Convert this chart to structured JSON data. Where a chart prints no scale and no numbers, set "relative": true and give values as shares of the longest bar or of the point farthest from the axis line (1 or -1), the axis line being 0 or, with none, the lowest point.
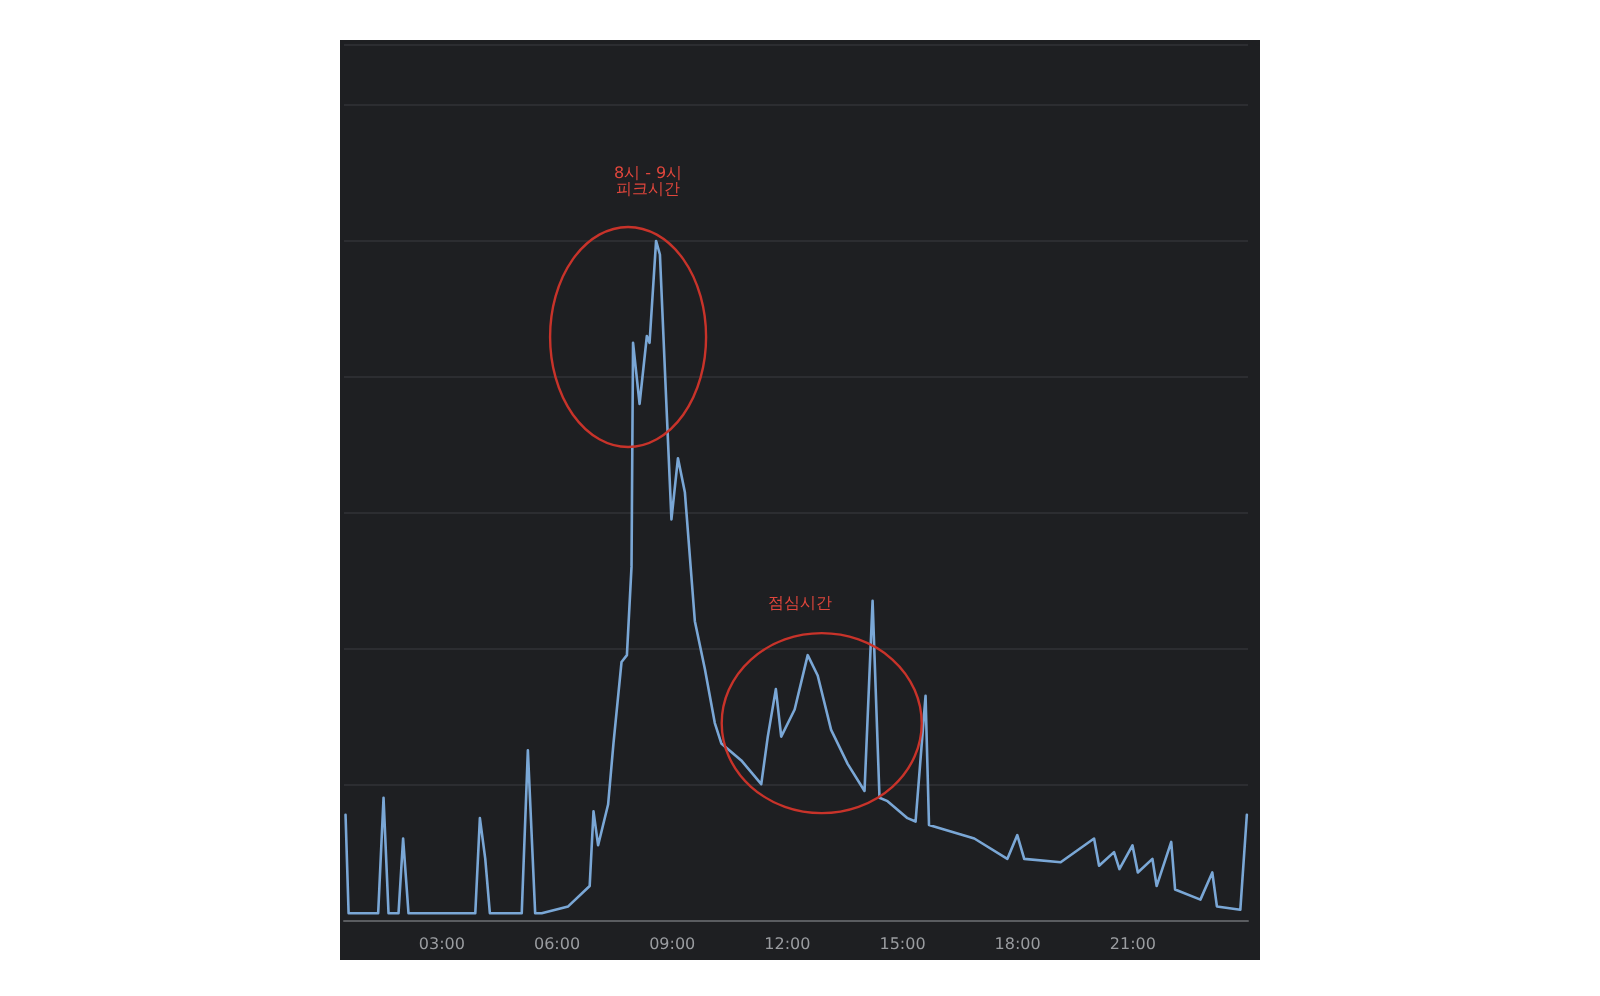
{
  "chart_data": {
    "type": "line",
    "relative": true,
    "grid": "y",
    "marker": "none",
    "line_style": "solid",
    "x": [
      0.49,
      0.57,
      1.34,
      1.48,
      1.61,
      1.87,
      1.99,
      2.13,
      3.87,
      3.99,
      4.13,
      4.25,
      5.08,
      5.24,
      5.43,
      5.6,
      6.29,
      6.85,
      6.95,
      7.07,
      7.33,
      7.47,
      7.68,
      7.82,
      7.94,
      7.98,
      8.15,
      8.34,
      8.41,
      8.58,
      8.68,
      8.84,
      8.98,
      9.15,
      9.33,
      9.59,
      9.85,
      10.11,
      10.28,
      10.8,
      11.32,
      11.49,
      11.7,
      11.84,
      12.19,
      12.53,
      12.79,
      13.14,
      13.57,
      14.01,
      14.22,
      14.4,
      14.61,
      15.13,
      15.34,
      15.6,
      15.69,
      16.87,
      17.73,
      17.99,
      18.17,
      19.12,
      19.99,
      20.12,
      20.51,
      20.65,
      20.99,
      21.13,
      21.51,
      21.62,
      22.0,
      22.1,
      22.76,
      23.07,
      23.19,
      23.8,
      23.97
    ],
    "series": [
      {
        "color": "#7aa7d6",
        "values": [
          0.155,
          0.01,
          0.01,
          0.18,
          0.01,
          0.01,
          0.12,
          0.01,
          0.01,
          0.15,
          0.09,
          0.01,
          0.01,
          0.25,
          0.01,
          0.01,
          0.02,
          0.05,
          0.16,
          0.11,
          0.17,
          0.26,
          0.38,
          0.39,
          0.52,
          0.85,
          0.76,
          0.86,
          0.85,
          1.0,
          0.98,
          0.77,
          0.59,
          0.68,
          0.63,
          0.44,
          0.37,
          0.29,
          0.26,
          0.235,
          0.2,
          0.27,
          0.34,
          0.27,
          0.31,
          0.39,
          0.36,
          0.28,
          0.23,
          0.19,
          0.47,
          0.18,
          0.175,
          0.15,
          0.145,
          0.33,
          0.14,
          0.12,
          0.09,
          0.125,
          0.09,
          0.085,
          0.12,
          0.08,
          0.1,
          0.075,
          0.11,
          0.07,
          0.09,
          0.05,
          0.115,
          0.045,
          0.03,
          0.07,
          0.02,
          0.015,
          0.155
        ]
      }
    ],
    "xlim": [
      0.45,
      24.0
    ],
    "xticks": [
      {
        "value": 3,
        "label": "03:00"
      },
      {
        "value": 6,
        "label": "06:00"
      },
      {
        "value": 9,
        "label": "09:00"
      },
      {
        "value": 12,
        "label": "12:00"
      },
      {
        "value": 15,
        "label": "15:00"
      },
      {
        "value": 18,
        "label": "18:00"
      },
      {
        "value": 21,
        "label": "21:00"
      }
    ],
    "annotations": [
      {
        "text": "8시 - 9시\n피크시간",
        "x": 8.58,
        "y": 1.0
      },
      {
        "text": "점심시간",
        "x": 12.53,
        "y": 0.39
      }
    ]
  }
}
